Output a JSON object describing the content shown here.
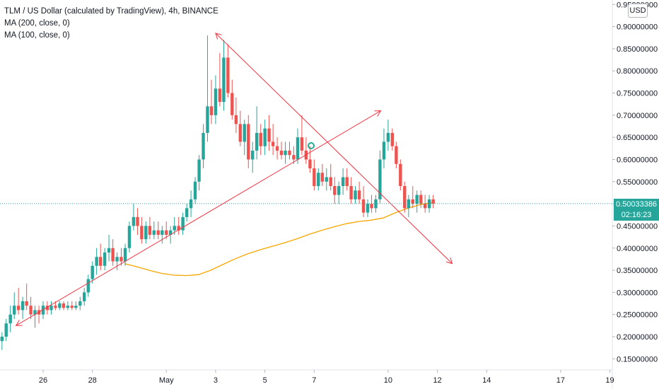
{
  "legend": {
    "symbol": "TLM / US Dollar (calculated by TradingView), 4h, BINANCE",
    "ma200": "MA (200, close, 0)",
    "ma100": "MA (100, close, 0)"
  },
  "currency_button": "USD",
  "last_price": {
    "value": "0.50033386",
    "countdown": "02:16:23"
  },
  "colors": {
    "up": "#26a69a",
    "down": "#ef5350",
    "ma": "#f7a600",
    "trendline": "#f23645",
    "last_line": "#26a69a"
  },
  "chart_data": {
    "type": "candlestick",
    "timeframe": "4h",
    "y_axis": {
      "ticks": [
        0.15,
        0.2,
        0.25,
        0.3,
        0.35,
        0.4,
        0.45,
        0.5,
        0.55,
        0.6,
        0.65,
        0.7,
        0.75,
        0.8,
        0.85,
        0.9,
        0.95
      ],
      "tick_labels": [
        "0.15000000",
        "0.20000000",
        "0.25000000",
        "0.30000000",
        "0.35000000",
        "0.40000000",
        "0.45000000",
        "0.50000000",
        "0.55000000",
        "0.60000000",
        "0.65000000",
        "0.70000000",
        "0.75000000",
        "0.80000000",
        "0.85000000",
        "0.90000000",
        "0.95000000"
      ],
      "range": [
        0.125,
        0.96
      ]
    },
    "x_axis": {
      "ticks": [
        {
          "label": "26",
          "day": 26
        },
        {
          "label": "28",
          "day": 28
        },
        {
          "label": "May",
          "day": 31
        },
        {
          "label": "3",
          "day": 33
        },
        {
          "label": "5",
          "day": 35
        },
        {
          "label": "7",
          "day": 37
        },
        {
          "label": "10",
          "day": 40
        },
        {
          "label": "12",
          "day": 42
        },
        {
          "label": "14",
          "day": 44
        },
        {
          "label": "17",
          "day": 47
        },
        {
          "label": "19",
          "day": 49
        }
      ],
      "range": [
        24.3,
        49.2
      ]
    },
    "candles": [
      [
        24.33,
        0.19,
        0.21,
        0.17,
        0.2
      ],
      [
        24.5,
        0.2,
        0.24,
        0.19,
        0.23
      ],
      [
        24.67,
        0.23,
        0.27,
        0.21,
        0.25
      ],
      [
        24.83,
        0.25,
        0.3,
        0.24,
        0.27
      ],
      [
        25.0,
        0.27,
        0.31,
        0.25,
        0.26
      ],
      [
        25.17,
        0.26,
        0.29,
        0.24,
        0.28
      ],
      [
        25.33,
        0.28,
        0.32,
        0.26,
        0.27
      ],
      [
        25.5,
        0.27,
        0.29,
        0.24,
        0.25
      ],
      [
        25.67,
        0.25,
        0.27,
        0.22,
        0.26
      ],
      [
        25.83,
        0.26,
        0.27,
        0.23,
        0.25
      ],
      [
        26.0,
        0.25,
        0.28,
        0.24,
        0.27
      ],
      [
        26.17,
        0.27,
        0.28,
        0.25,
        0.26
      ],
      [
        26.33,
        0.26,
        0.28,
        0.25,
        0.27
      ],
      [
        26.5,
        0.27,
        0.28,
        0.26,
        0.265
      ],
      [
        26.67,
        0.265,
        0.28,
        0.26,
        0.275
      ],
      [
        26.83,
        0.275,
        0.28,
        0.26,
        0.265
      ],
      [
        27.0,
        0.265,
        0.28,
        0.26,
        0.27
      ],
      [
        27.17,
        0.27,
        0.28,
        0.26,
        0.265
      ],
      [
        27.33,
        0.265,
        0.28,
        0.26,
        0.27
      ],
      [
        27.5,
        0.27,
        0.29,
        0.26,
        0.28
      ],
      [
        27.67,
        0.28,
        0.31,
        0.27,
        0.3
      ],
      [
        27.83,
        0.3,
        0.34,
        0.29,
        0.33
      ],
      [
        28.0,
        0.33,
        0.37,
        0.32,
        0.36
      ],
      [
        28.17,
        0.36,
        0.4,
        0.34,
        0.38
      ],
      [
        28.33,
        0.38,
        0.41,
        0.35,
        0.36
      ],
      [
        28.5,
        0.36,
        0.4,
        0.35,
        0.39
      ],
      [
        28.67,
        0.39,
        0.43,
        0.37,
        0.4
      ],
      [
        28.83,
        0.4,
        0.42,
        0.36,
        0.37
      ],
      [
        29.0,
        0.37,
        0.39,
        0.35,
        0.38
      ],
      [
        29.17,
        0.38,
        0.4,
        0.36,
        0.37
      ],
      [
        29.33,
        0.37,
        0.41,
        0.36,
        0.4
      ],
      [
        29.5,
        0.4,
        0.46,
        0.39,
        0.45
      ],
      [
        29.67,
        0.45,
        0.5,
        0.44,
        0.47
      ],
      [
        29.83,
        0.47,
        0.49,
        0.43,
        0.45
      ],
      [
        30.0,
        0.45,
        0.47,
        0.41,
        0.42
      ],
      [
        30.17,
        0.42,
        0.46,
        0.41,
        0.45
      ],
      [
        30.33,
        0.45,
        0.47,
        0.42,
        0.43
      ],
      [
        30.5,
        0.43,
        0.46,
        0.42,
        0.44
      ],
      [
        30.67,
        0.44,
        0.46,
        0.42,
        0.43
      ],
      [
        30.83,
        0.43,
        0.45,
        0.41,
        0.44
      ],
      [
        31.0,
        0.44,
        0.46,
        0.42,
        0.43
      ],
      [
        31.17,
        0.43,
        0.45,
        0.41,
        0.44
      ],
      [
        31.33,
        0.44,
        0.47,
        0.43,
        0.45
      ],
      [
        31.5,
        0.45,
        0.47,
        0.43,
        0.44
      ],
      [
        31.67,
        0.44,
        0.48,
        0.43,
        0.47
      ],
      [
        31.83,
        0.47,
        0.5,
        0.46,
        0.49
      ],
      [
        32.0,
        0.49,
        0.53,
        0.47,
        0.51
      ],
      [
        32.17,
        0.51,
        0.56,
        0.5,
        0.55
      ],
      [
        32.33,
        0.55,
        0.61,
        0.53,
        0.6
      ],
      [
        32.5,
        0.6,
        0.68,
        0.58,
        0.66
      ],
      [
        32.67,
        0.66,
        0.88,
        0.64,
        0.72
      ],
      [
        32.83,
        0.72,
        0.78,
        0.68,
        0.7
      ],
      [
        33.0,
        0.7,
        0.79,
        0.68,
        0.76
      ],
      [
        33.17,
        0.76,
        0.84,
        0.72,
        0.73
      ],
      [
        33.33,
        0.73,
        0.87,
        0.71,
        0.83
      ],
      [
        33.5,
        0.83,
        0.86,
        0.74,
        0.75
      ],
      [
        33.67,
        0.75,
        0.78,
        0.69,
        0.7
      ],
      [
        33.83,
        0.7,
        0.74,
        0.66,
        0.68
      ],
      [
        34.0,
        0.68,
        0.71,
        0.63,
        0.64
      ],
      [
        34.17,
        0.64,
        0.69,
        0.61,
        0.68
      ],
      [
        34.33,
        0.68,
        0.7,
        0.58,
        0.6
      ],
      [
        34.5,
        0.6,
        0.64,
        0.57,
        0.62
      ],
      [
        34.67,
        0.62,
        0.72,
        0.6,
        0.66
      ],
      [
        34.83,
        0.66,
        0.68,
        0.61,
        0.63
      ],
      [
        35.0,
        0.63,
        0.69,
        0.61,
        0.67
      ],
      [
        35.17,
        0.67,
        0.7,
        0.62,
        0.64
      ],
      [
        35.33,
        0.64,
        0.68,
        0.61,
        0.63
      ],
      [
        35.5,
        0.63,
        0.65,
        0.6,
        0.62
      ],
      [
        35.67,
        0.62,
        0.64,
        0.6,
        0.61
      ],
      [
        35.83,
        0.61,
        0.64,
        0.59,
        0.62
      ],
      [
        36.0,
        0.62,
        0.64,
        0.6,
        0.61
      ],
      [
        36.17,
        0.61,
        0.63,
        0.59,
        0.6
      ],
      [
        36.33,
        0.6,
        0.67,
        0.59,
        0.65
      ],
      [
        36.5,
        0.65,
        0.7,
        0.61,
        0.62
      ],
      [
        36.67,
        0.62,
        0.65,
        0.59,
        0.6
      ],
      [
        36.83,
        0.6,
        0.63,
        0.57,
        0.58
      ],
      [
        37.0,
        0.58,
        0.6,
        0.53,
        0.54
      ],
      [
        37.17,
        0.54,
        0.58,
        0.53,
        0.57
      ],
      [
        37.33,
        0.57,
        0.59,
        0.54,
        0.55
      ],
      [
        37.5,
        0.55,
        0.58,
        0.53,
        0.56
      ],
      [
        37.67,
        0.56,
        0.59,
        0.53,
        0.54
      ],
      [
        37.83,
        0.54,
        0.56,
        0.5,
        0.52
      ],
      [
        38.0,
        0.52,
        0.55,
        0.5,
        0.54
      ],
      [
        38.17,
        0.54,
        0.58,
        0.52,
        0.56
      ],
      [
        38.33,
        0.56,
        0.58,
        0.53,
        0.54
      ],
      [
        38.5,
        0.54,
        0.56,
        0.5,
        0.51
      ],
      [
        38.67,
        0.51,
        0.54,
        0.5,
        0.53
      ],
      [
        38.83,
        0.53,
        0.55,
        0.5,
        0.51
      ],
      [
        39.0,
        0.51,
        0.54,
        0.47,
        0.48
      ],
      [
        39.17,
        0.48,
        0.51,
        0.47,
        0.5
      ],
      [
        39.33,
        0.5,
        0.52,
        0.48,
        0.49
      ],
      [
        39.5,
        0.49,
        0.52,
        0.48,
        0.51
      ],
      [
        39.67,
        0.51,
        0.62,
        0.5,
        0.6
      ],
      [
        39.83,
        0.6,
        0.67,
        0.58,
        0.64
      ],
      [
        40.0,
        0.64,
        0.69,
        0.62,
        0.66
      ],
      [
        40.17,
        0.66,
        0.67,
        0.62,
        0.63
      ],
      [
        40.33,
        0.63,
        0.64,
        0.58,
        0.59
      ],
      [
        40.5,
        0.59,
        0.6,
        0.53,
        0.54
      ],
      [
        40.67,
        0.54,
        0.55,
        0.48,
        0.49
      ],
      [
        40.83,
        0.49,
        0.52,
        0.47,
        0.51
      ],
      [
        41.0,
        0.51,
        0.54,
        0.49,
        0.5
      ],
      [
        41.17,
        0.5,
        0.53,
        0.48,
        0.52
      ],
      [
        41.33,
        0.52,
        0.53,
        0.49,
        0.5
      ],
      [
        41.5,
        0.5,
        0.52,
        0.48,
        0.49
      ],
      [
        41.67,
        0.49,
        0.52,
        0.48,
        0.51
      ],
      [
        41.83,
        0.51,
        0.52,
        0.49,
        0.5
      ]
    ],
    "moving_average": {
      "name": "MA (200, close, 0)",
      "points": [
        [
          29.3,
          0.365
        ],
        [
          29.8,
          0.358
        ],
        [
          30.3,
          0.35
        ],
        [
          30.8,
          0.343
        ],
        [
          31.3,
          0.339
        ],
        [
          31.8,
          0.338
        ],
        [
          32.3,
          0.34
        ],
        [
          32.8,
          0.35
        ],
        [
          33.3,
          0.363
        ],
        [
          33.8,
          0.376
        ],
        [
          34.3,
          0.387
        ],
        [
          34.8,
          0.396
        ],
        [
          35.3,
          0.404
        ],
        [
          35.8,
          0.412
        ],
        [
          36.3,
          0.421
        ],
        [
          36.8,
          0.431
        ],
        [
          37.3,
          0.44
        ],
        [
          37.8,
          0.448
        ],
        [
          38.3,
          0.455
        ],
        [
          38.8,
          0.46
        ],
        [
          39.3,
          0.463
        ],
        [
          39.8,
          0.468
        ],
        [
          40.3,
          0.48
        ],
        [
          40.8,
          0.49
        ],
        [
          41.3,
          0.498
        ],
        [
          41.8,
          0.503
        ]
      ]
    },
    "trendlines": [
      {
        "name": "lower-trendline",
        "from": [
          24.9,
          0.225
        ],
        "to": [
          39.7,
          0.71
        ]
      },
      {
        "name": "upper-trendline",
        "from": [
          33.0,
          0.885
        ],
        "to": [
          42.6,
          0.365
        ]
      }
    ],
    "last_price_line": 0.50033386,
    "grid": false
  }
}
